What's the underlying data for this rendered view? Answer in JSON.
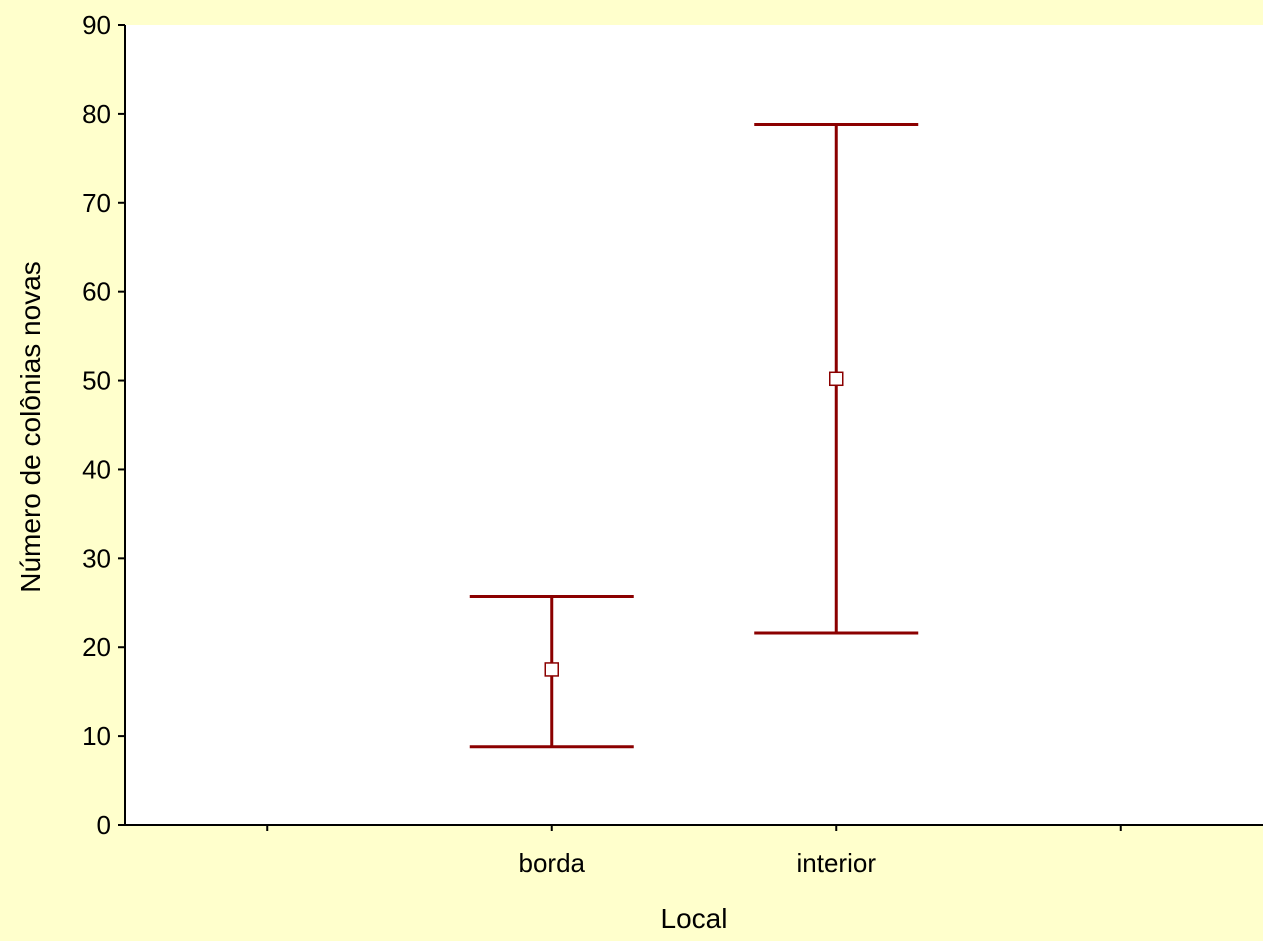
{
  "chart_data": {
    "type": "scatter",
    "title": "",
    "xlabel": "Local",
    "ylabel": "Número de colônias novas",
    "ylim": [
      0,
      90
    ],
    "yticks": [
      0,
      10,
      20,
      30,
      40,
      50,
      60,
      70,
      80,
      90
    ],
    "yticks_labels": [
      "0",
      "10",
      "20",
      "30",
      "40",
      "50",
      "60",
      "70",
      "80",
      "90"
    ],
    "categories": [
      "borda",
      "interior"
    ],
    "series": [
      {
        "values": [
          17.5,
          50.2
        ],
        "error_lower": [
          8.8,
          21.6
        ],
        "error_upper": [
          25.7,
          78.8
        ]
      }
    ],
    "grid": false,
    "legend": "none"
  },
  "colors": {
    "background": "#FFFFCC",
    "plot_area": "#FFFFFF",
    "error_bar": "#8B0000",
    "marker_fill": "#FFFFFF",
    "axis": "#000000"
  }
}
